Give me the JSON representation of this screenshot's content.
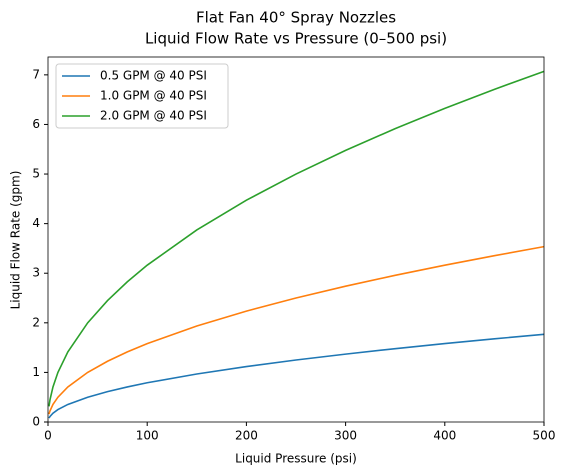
{
  "chart_data": {
    "type": "line",
    "title": "Flat Fan 40° Spray Nozzles",
    "subtitle": "Liquid Flow Rate vs Pressure (0–500 psi)",
    "x_label": "Liquid Pressure (psi)",
    "y_label": "Liquid Flow Rate (gpm)",
    "x": [
      1,
      2,
      5,
      10,
      20,
      40,
      60,
      80,
      100,
      150,
      200,
      250,
      300,
      350,
      400,
      450,
      500
    ],
    "series": [
      {
        "name": "0.5 GPM @ 40 PSI",
        "color": "#1f77b4",
        "values": [
          0.079,
          0.112,
          0.177,
          0.25,
          0.354,
          0.5,
          0.612,
          0.707,
          0.791,
          0.968,
          1.118,
          1.25,
          1.369,
          1.479,
          1.581,
          1.677,
          1.768
        ]
      },
      {
        "name": "1.0 GPM @ 40 PSI",
        "color": "#ff7f0e",
        "values": [
          0.158,
          0.224,
          0.354,
          0.5,
          0.707,
          1.0,
          1.225,
          1.414,
          1.581,
          1.936,
          2.236,
          2.5,
          2.739,
          2.958,
          3.162,
          3.354,
          3.536
        ]
      },
      {
        "name": "2.0 GPM @ 40 PSI",
        "color": "#2ca02c",
        "values": [
          0.316,
          0.447,
          0.707,
          1.0,
          1.414,
          2.0,
          2.449,
          2.828,
          3.162,
          3.873,
          4.472,
          5.0,
          5.477,
          5.916,
          6.325,
          6.708,
          7.071
        ]
      }
    ],
    "xlim": [
      0,
      500
    ],
    "ylim": [
      0,
      7.36
    ],
    "xticks": [
      0,
      100,
      200,
      300,
      400,
      500
    ],
    "yticks": [
      0,
      1,
      2,
      3,
      4,
      5,
      6,
      7
    ],
    "legend": "upper left"
  }
}
